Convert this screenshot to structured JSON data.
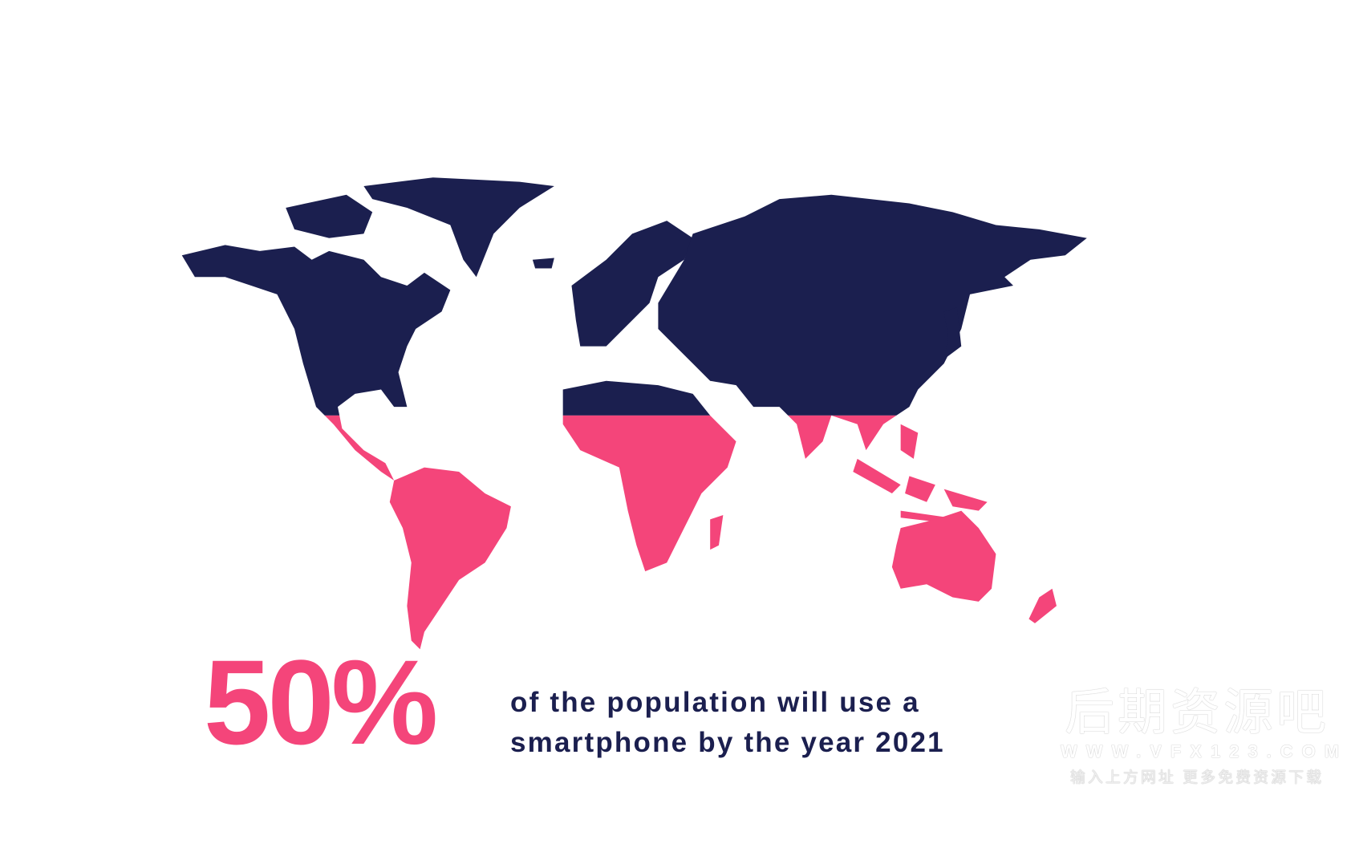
{
  "colors": {
    "north": "#1b1f4f",
    "south": "#f4457a",
    "background": "#ffffff"
  },
  "headline": {
    "percent": "50%",
    "line1": "of the population will use a",
    "line2": "smartphone by the year 2021"
  },
  "watermark": {
    "title": "后期资源吧",
    "url": "WWW.VFX123.COM",
    "tagline": "输入上方网址 更多免费资源下载"
  }
}
